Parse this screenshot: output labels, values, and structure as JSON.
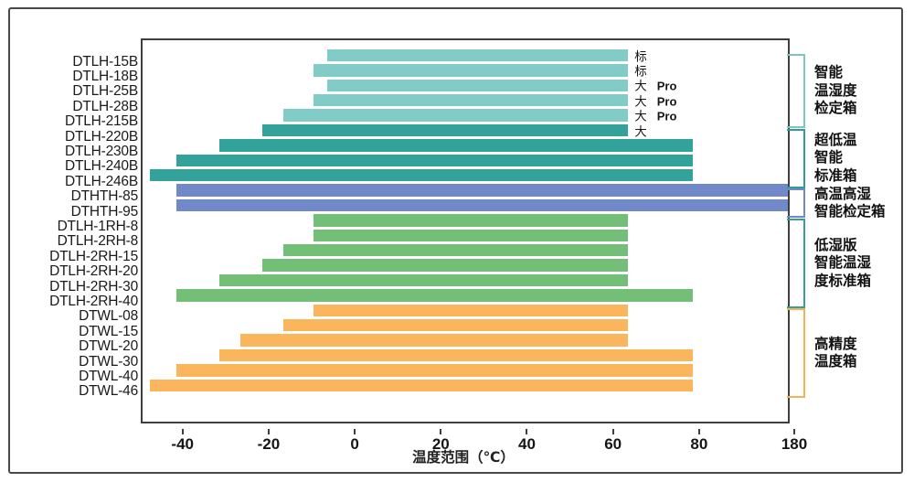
{
  "chart_data": {
    "type": "bar",
    "orientation": "horizontal",
    "title": "",
    "xlabel": "温度范围（℃）",
    "ylabel": "",
    "x_ticks": [
      -40,
      -20,
      0,
      20,
      40,
      60,
      80,
      180
    ],
    "axis": {
      "min": -47.8,
      "break_value": 80,
      "break_fraction": 0.8525,
      "max": 180,
      "note": "axis compressed between 80 and 180"
    },
    "colors": {
      "light_teal": "#81CCC7",
      "teal": "#33A29B",
      "blue": "#7189C8",
      "green": "#73BF78",
      "orange": "#FBB55D",
      "plot_border": "#3e3e3e",
      "frame_border": "#4a4a4a"
    },
    "bars": [
      {
        "label": "DTLH-15B",
        "range": [
          -5,
          65
        ],
        "color": "light_teal",
        "note": "标",
        "note_bold": ""
      },
      {
        "label": "DTLH-18B",
        "range": [
          -8,
          65
        ],
        "color": "light_teal",
        "note": "标",
        "note_bold": ""
      },
      {
        "label": "DTLH-25B",
        "range": [
          -5,
          65
        ],
        "color": "light_teal",
        "note": "大",
        "note_bold": "Pro"
      },
      {
        "label": "DTLH-28B",
        "range": [
          -8,
          65
        ],
        "color": "light_teal",
        "note": "大",
        "note_bold": "Pro"
      },
      {
        "label": "DTLH-215B",
        "range": [
          -15,
          65
        ],
        "color": "light_teal",
        "note": "大",
        "note_bold": "Pro"
      },
      {
        "label": "DTLH-220B",
        "range": [
          -20,
          65
        ],
        "color": "teal",
        "note": "大",
        "note_bold": ""
      },
      {
        "label": "DTLH-230B",
        "range": [
          -30,
          80
        ],
        "color": "teal",
        "note": "",
        "note_bold": ""
      },
      {
        "label": "DTLH-240B",
        "range": [
          -40,
          80
        ],
        "color": "teal",
        "note": "",
        "note_bold": ""
      },
      {
        "label": "DTLH-246B",
        "range": [
          -46,
          80
        ],
        "color": "teal",
        "note": "",
        "note_bold": ""
      },
      {
        "label": "DTHTH-85",
        "range": [
          -40,
          180
        ],
        "color": "blue",
        "note": "",
        "note_bold": ""
      },
      {
        "label": "DTHTH-95",
        "range": [
          -40,
          180
        ],
        "color": "blue",
        "note": "",
        "note_bold": ""
      },
      {
        "label": "DTLH-1RH-8",
        "range": [
          -8,
          65
        ],
        "color": "green",
        "note": "",
        "note_bold": ""
      },
      {
        "label": "DTLH-2RH-8",
        "range": [
          -8,
          65
        ],
        "color": "green",
        "note": "",
        "note_bold": ""
      },
      {
        "label": "DTLH-2RH-15",
        "range": [
          -15,
          65
        ],
        "color": "green",
        "note": "",
        "note_bold": ""
      },
      {
        "label": "DTLH-2RH-20",
        "range": [
          -20,
          65
        ],
        "color": "green",
        "note": "",
        "note_bold": ""
      },
      {
        "label": "DTLH-2RH-30",
        "range": [
          -30,
          65
        ],
        "color": "green",
        "note": "",
        "note_bold": ""
      },
      {
        "label": "DTLH-2RH-40",
        "range": [
          -40,
          80
        ],
        "color": "green",
        "note": "",
        "note_bold": ""
      },
      {
        "label": "DTWL-08",
        "range": [
          -8,
          65
        ],
        "color": "orange",
        "note": "",
        "note_bold": ""
      },
      {
        "label": "DTWL-15",
        "range": [
          -15,
          65
        ],
        "color": "orange",
        "note": "",
        "note_bold": ""
      },
      {
        "label": "DTWL-20",
        "range": [
          -25,
          65
        ],
        "color": "orange",
        "note": "",
        "note_bold": ""
      },
      {
        "label": "DTWL-30",
        "range": [
          -30,
          80
        ],
        "color": "orange",
        "note": "",
        "note_bold": ""
      },
      {
        "label": "DTWL-40",
        "range": [
          -40,
          80
        ],
        "color": "orange",
        "note": "",
        "note_bold": ""
      },
      {
        "label": "DTWL-46",
        "range": [
          -46,
          80
        ],
        "color": "orange",
        "note": "",
        "note_bold": ""
      }
    ],
    "groups": [
      {
        "lines": [
          "智能",
          "温湿度",
          "检定箱"
        ],
        "rows": [
          0,
          4
        ],
        "color": "#79C7C1"
      },
      {
        "lines": [
          "超低温",
          "智能",
          "标准箱"
        ],
        "rows": [
          5,
          8
        ],
        "color": "#2F9C96"
      },
      {
        "lines": [
          "高温高湿",
          "智能检定箱"
        ],
        "rows": [
          9,
          10
        ],
        "color": "#7189C8"
      },
      {
        "lines": [
          "低湿版",
          "智能温湿",
          "度标准箱"
        ],
        "rows": [
          11,
          16
        ],
        "color": "#359F99"
      },
      {
        "lines": [
          "高精度",
          "温度箱"
        ],
        "rows": [
          17,
          22
        ],
        "color": "#F7B156"
      }
    ]
  }
}
